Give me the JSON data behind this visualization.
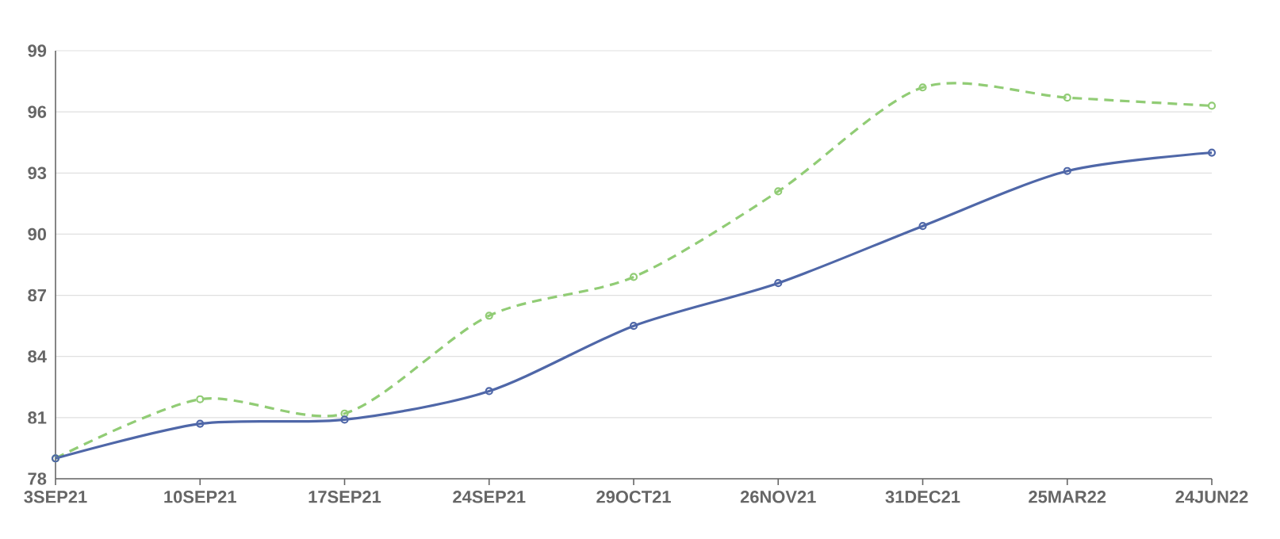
{
  "chart_data": {
    "type": "line",
    "categories": [
      "3SEP21",
      "10SEP21",
      "17SEP21",
      "24SEP21",
      "29OCT21",
      "26NOV21",
      "31DEC21",
      "25MAR22",
      "24JUN22"
    ],
    "series": [
      {
        "color": "#4f67a8",
        "line_style": "solid",
        "values": [
          79.0,
          80.7,
          80.9,
          82.3,
          85.5,
          87.6,
          90.4,
          93.1,
          94.0
        ]
      },
      {
        "color": "#91cc75",
        "line_style": "dashed",
        "values": [
          79.0,
          81.9,
          81.2,
          86.0,
          87.9,
          92.1,
          97.2,
          96.7,
          96.3
        ]
      }
    ],
    "ylim": [
      78,
      99
    ],
    "yticks": [
      78,
      81,
      84,
      87,
      90,
      93,
      96,
      99
    ],
    "grid": "y",
    "marker": "circle",
    "legend": false
  }
}
